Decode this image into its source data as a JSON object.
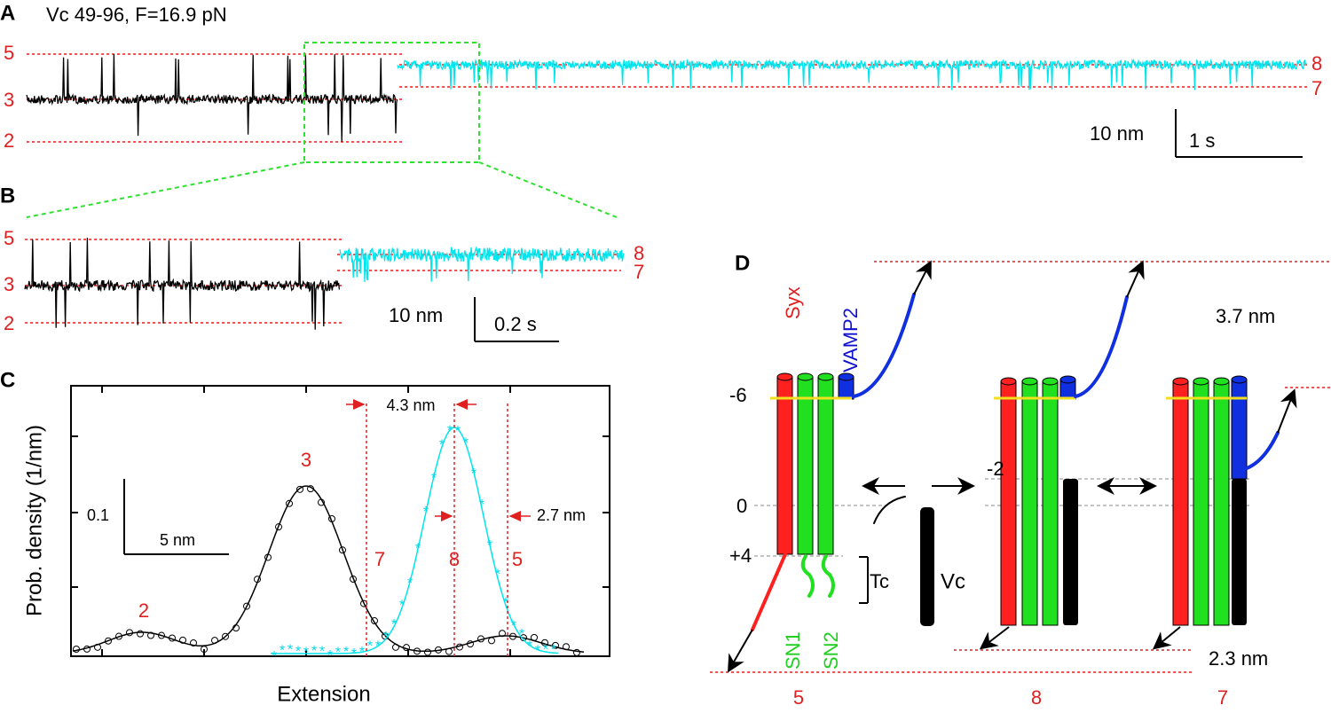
{
  "panels": {
    "A": {
      "label": "A",
      "title": "Vc 49-96, F=16.9 pN",
      "levels_left": [
        "5",
        "3",
        "2"
      ],
      "levels_right": [
        "8",
        "7"
      ],
      "scale_y": "10 nm",
      "scale_x": "1 s"
    },
    "B": {
      "label": "B",
      "levels_left": [
        "5",
        "3",
        "2"
      ],
      "levels_right": [
        "8",
        "7"
      ],
      "scale_y": "10 nm",
      "scale_x": "0.2 s"
    },
    "C": {
      "label": "C",
      "y_label": "Prob. density (1/nm)",
      "x_label": "Extension",
      "scale_y": "0.1",
      "scale_x": "5 nm",
      "peaks": [
        "2",
        "3",
        "7",
        "8",
        "5"
      ],
      "dist1": "4.3 nm",
      "dist2": "2.7 nm"
    },
    "D": {
      "label": "D",
      "proteins": [
        "Syx",
        "VAMP2",
        "SN1",
        "SN2"
      ],
      "layers": [
        "-6",
        "0",
        "+4",
        "-2"
      ],
      "tc": "Tc",
      "vc": "Vc",
      "dist_top": "3.7 nm",
      "dist_bottom": "2.3 nm",
      "states": [
        "5",
        "8",
        "7"
      ]
    }
  }
}
